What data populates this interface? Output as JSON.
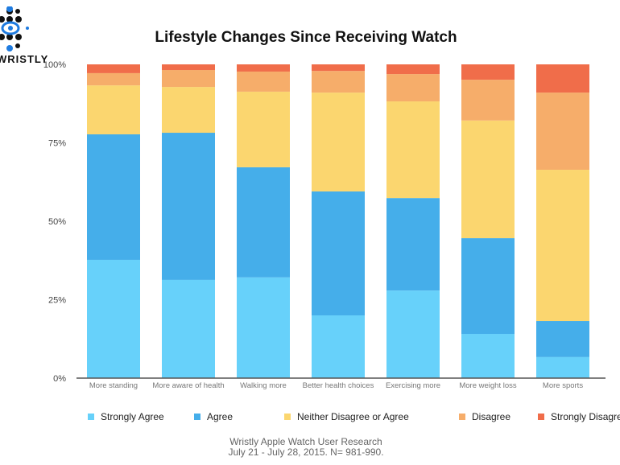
{
  "logo": {
    "text": "WRISTLY"
  },
  "footer": {
    "line1": "Wristly Apple Watch User Research",
    "line2": "July 21 - July 28, 2015.  N= 981-990."
  },
  "chart_data": {
    "type": "bar",
    "stacked": true,
    "title": "Lifestyle Changes Since Receiving Watch",
    "xlabel": "",
    "ylabel": "",
    "ylim": [
      0,
      100
    ],
    "yticks": [
      "0%",
      "25%",
      "50%",
      "75%",
      "100%"
    ],
    "grid": false,
    "legend_position": "bottom",
    "categories": [
      "More standing",
      "More aware of health",
      "Walking more",
      "Better health choices",
      "Exercising more",
      "More weight loss",
      "More sports"
    ],
    "series": [
      {
        "name": "Strongly Agree",
        "color": "#67d1fa",
        "values": [
          37.7,
          31.3,
          32.1,
          20.0,
          27.9,
          14.1,
          6.7
        ]
      },
      {
        "name": "Agree",
        "color": "#45aeea",
        "values": [
          40.0,
          46.9,
          35.1,
          39.5,
          29.5,
          30.5,
          11.5
        ]
      },
      {
        "name": "Neither Disagree or Agree",
        "color": "#fbd66f",
        "values": [
          15.6,
          14.6,
          24.1,
          31.5,
          30.8,
          37.5,
          48.2
        ]
      },
      {
        "name": "Disagree",
        "color": "#f6ad6a",
        "values": [
          3.9,
          5.4,
          6.4,
          6.9,
          8.7,
          13.0,
          24.6
        ]
      },
      {
        "name": "Strongly Disagree",
        "color": "#f06d4a",
        "values": [
          2.8,
          1.8,
          2.3,
          2.1,
          3.1,
          4.9,
          9.0
        ]
      }
    ]
  }
}
